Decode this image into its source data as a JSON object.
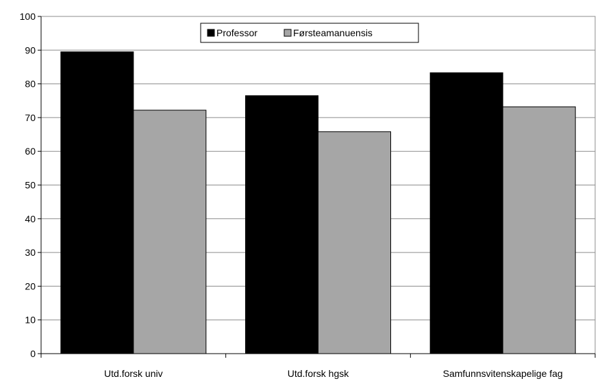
{
  "chart_data": {
    "type": "bar",
    "categories": [
      "Utd.forsk univ",
      "Utd.forsk hgsk",
      "Samfunnsvitenskapelige fag"
    ],
    "series": [
      {
        "name": "Professor",
        "values": [
          89.5,
          76.5,
          83.3
        ],
        "color": "#000000"
      },
      {
        "name": "Førsteamanuensis",
        "values": [
          72.2,
          65.8,
          73.2
        ],
        "color": "#a6a6a6"
      }
    ],
    "title": "",
    "xlabel": "",
    "ylabel": "",
    "ylim": [
      0,
      100
    ],
    "yticks": [
      0,
      10,
      20,
      30,
      40,
      50,
      60,
      70,
      80,
      90,
      100
    ],
    "grid": true,
    "legend_position": "top-center"
  }
}
